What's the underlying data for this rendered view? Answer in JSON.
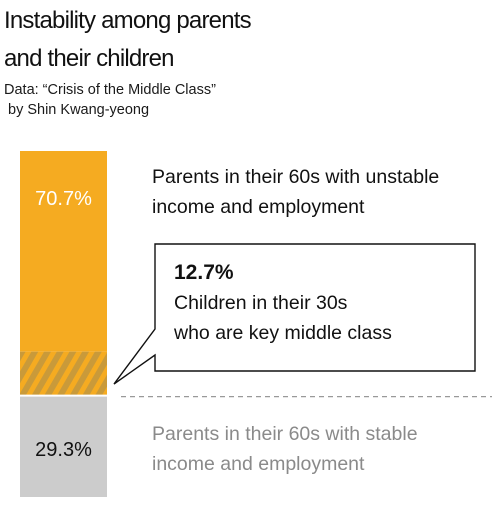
{
  "title": [
    "Instability among parents",
    "and their children"
  ],
  "source": [
    "Data: “Crisis of the Middle Class”",
    "by Shin Kwang-yeong"
  ],
  "colors": {
    "unstable": "#f5ab21",
    "stable": "#cccccc",
    "hatch": "#c99a3a",
    "callout_border": "#111111",
    "divider": "#999999",
    "value_text_light": "#ffffff",
    "value_text_dark": "#111111"
  },
  "chart_data": {
    "type": "bar",
    "stacked": true,
    "unit": "%",
    "ylim": [
      0,
      100
    ],
    "segments": [
      {
        "key": "unstable",
        "value": 70.7,
        "value_label": "70.7%",
        "label": [
          "Parents in their 60s with unstable",
          "income and employment"
        ]
      },
      {
        "key": "stable",
        "value": 29.3,
        "value_label": "29.3%",
        "label": [
          "Parents in their 60s with stable",
          "income and employment"
        ]
      }
    ],
    "highlight": {
      "within": "unstable",
      "value": 12.7,
      "value_label": "12.7%",
      "label": [
        "Children in their 30s",
        "who are key middle class"
      ]
    }
  }
}
